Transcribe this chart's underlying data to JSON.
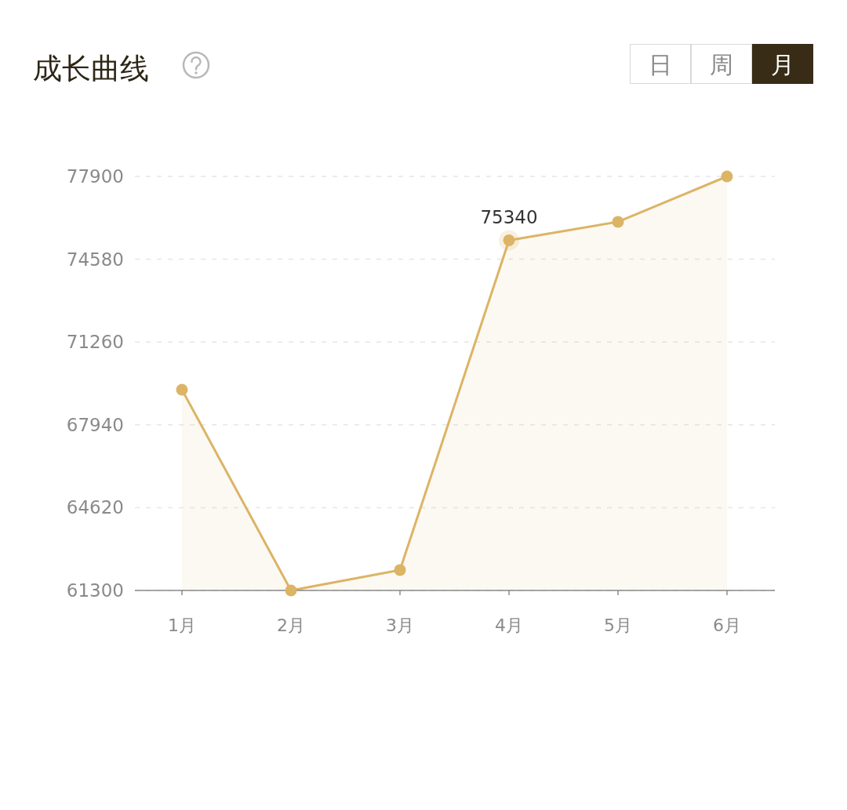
{
  "chart_data": {
    "type": "area",
    "title": "成长曲线",
    "annotations": [
      "日",
      "周",
      "月"
    ],
    "categories": [
      "1月",
      "2月",
      "3月",
      "4月",
      "5月",
      "6月"
    ],
    "values": [
      69350,
      61300,
      62120,
      75340,
      76080,
      77900
    ],
    "value_labels": [
      null,
      null,
      null,
      "75340",
      null,
      null
    ],
    "color": "#dcb465",
    "ylim": [
      61300,
      77900
    ],
    "yticks": [
      61300,
      64620,
      67940,
      71260,
      74580,
      77900
    ],
    "grid": "y",
    "marker": "circle",
    "line_style": "solid"
  }
}
